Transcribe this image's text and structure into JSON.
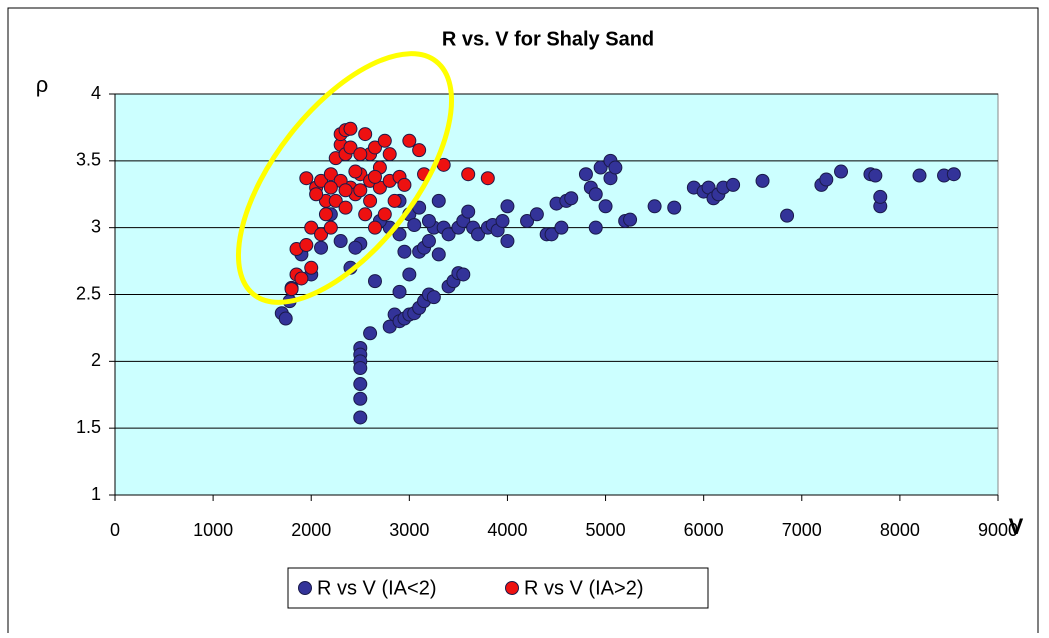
{
  "chart_data": {
    "type": "scatter",
    "title": "R vs. V for Shaly Sand",
    "x_label": "V",
    "y_label": "ρ",
    "xlim": [
      0,
      9000
    ],
    "xticks": [
      0,
      1000,
      2000,
      3000,
      4000,
      5000,
      6000,
      7000,
      8000,
      9000
    ],
    "ylim": [
      1,
      4
    ],
    "yticks": [
      1,
      1.5,
      2,
      2.5,
      3,
      3.5,
      4
    ],
    "grid": true,
    "legend": "bottom",
    "series": [
      {
        "name": "R vs V (IA<2)",
        "color": "#333399",
        "x": [
          1700,
          1740,
          1780,
          1800,
          1900,
          2000,
          2100,
          2200,
          2300,
          2400,
          2500,
          2450,
          2500,
          2500,
          2500,
          2500,
          2500,
          2500,
          2500,
          2600,
          2650,
          2800,
          2850,
          2900,
          2900,
          2950,
          3000,
          3050,
          3100,
          3150,
          3200,
          3250,
          3400,
          3450,
          3500,
          3550,
          3000,
          2950,
          2900,
          3100,
          3150,
          3200,
          3250,
          3300,
          3300,
          3350,
          3400,
          3500,
          3550,
          3600,
          3650,
          3700,
          3800,
          3850,
          3900,
          3950,
          4000,
          4000,
          4200,
          4300,
          4400,
          4450,
          4500,
          4550,
          4600,
          4650,
          4800,
          4850,
          4900,
          4900,
          4950,
          5000,
          5050,
          5050,
          5100,
          5200,
          5250,
          5500,
          5700,
          5900,
          6000,
          6050,
          6100,
          6150,
          6200,
          6300,
          6600,
          6850,
          7200,
          7250,
          7400,
          7700,
          7750,
          7800,
          7800,
          8200,
          8450,
          8550,
          3000,
          3100,
          2900,
          2800,
          2700,
          3200,
          3050
        ],
        "values": [
          2.36,
          2.32,
          2.45,
          2.55,
          2.8,
          2.65,
          2.85,
          3.1,
          2.9,
          2.7,
          2.88,
          2.85,
          2.1,
          2.05,
          2.0,
          1.95,
          1.83,
          1.72,
          1.58,
          2.21,
          2.6,
          2.26,
          2.35,
          2.52,
          2.3,
          2.32,
          2.35,
          2.36,
          2.4,
          2.45,
          2.5,
          2.48,
          2.56,
          2.6,
          2.66,
          2.65,
          2.65,
          2.82,
          2.95,
          2.82,
          2.85,
          2.9,
          3.0,
          2.8,
          3.2,
          3.0,
          2.95,
          3.0,
          3.05,
          3.12,
          3.0,
          2.95,
          3.0,
          3.02,
          2.98,
          3.05,
          3.16,
          2.9,
          3.05,
          3.1,
          2.95,
          2.95,
          3.18,
          3.0,
          3.2,
          3.22,
          3.4,
          3.3,
          3.25,
          3.0,
          3.45,
          3.16,
          3.37,
          3.5,
          3.45,
          3.05,
          3.06,
          3.16,
          3.15,
          3.3,
          3.27,
          3.3,
          3.22,
          3.25,
          3.3,
          3.32,
          3.35,
          3.09,
          3.32,
          3.36,
          3.42,
          3.4,
          3.39,
          3.16,
          3.23,
          3.39,
          3.39,
          3.4,
          3.1,
          3.15,
          3.2,
          3.0,
          3.05,
          3.05,
          3.02
        ]
      },
      {
        "name": "R vs V (IA>2)",
        "color": "#ee1111",
        "x": [
          1800,
          1850,
          1900,
          1850,
          1950,
          2000,
          2000,
          1950,
          2050,
          2100,
          2100,
          2150,
          2150,
          2200,
          2200,
          2250,
          2250,
          2300,
          2300,
          2350,
          2350,
          2400,
          2400,
          2400,
          2450,
          2500,
          2500,
          2550,
          2550,
          2600,
          2600,
          2650,
          2650,
          2700,
          2700,
          2750,
          2800,
          2800,
          2850,
          2900,
          3000,
          3100,
          3150,
          3350,
          3600,
          3800,
          2300,
          2350,
          2450,
          2200,
          2050,
          2600,
          2500,
          2750,
          2950,
          2350,
          2650
        ],
        "values": [
          2.54,
          2.65,
          2.62,
          2.84,
          2.87,
          2.7,
          3.0,
          3.37,
          3.3,
          3.35,
          2.95,
          3.1,
          3.2,
          3.4,
          3.0,
          3.52,
          3.2,
          3.62,
          3.7,
          3.73,
          3.55,
          3.74,
          3.3,
          3.6,
          3.25,
          3.4,
          3.28,
          3.7,
          3.1,
          3.55,
          3.35,
          3.6,
          3.0,
          3.3,
          3.45,
          3.65,
          3.55,
          3.35,
          3.2,
          3.38,
          3.65,
          3.58,
          3.4,
          3.47,
          3.4,
          3.37,
          3.35,
          3.15,
          3.42,
          3.3,
          3.25,
          3.2,
          3.55,
          3.1,
          3.32,
          3.28,
          3.38
        ]
      }
    ]
  }
}
